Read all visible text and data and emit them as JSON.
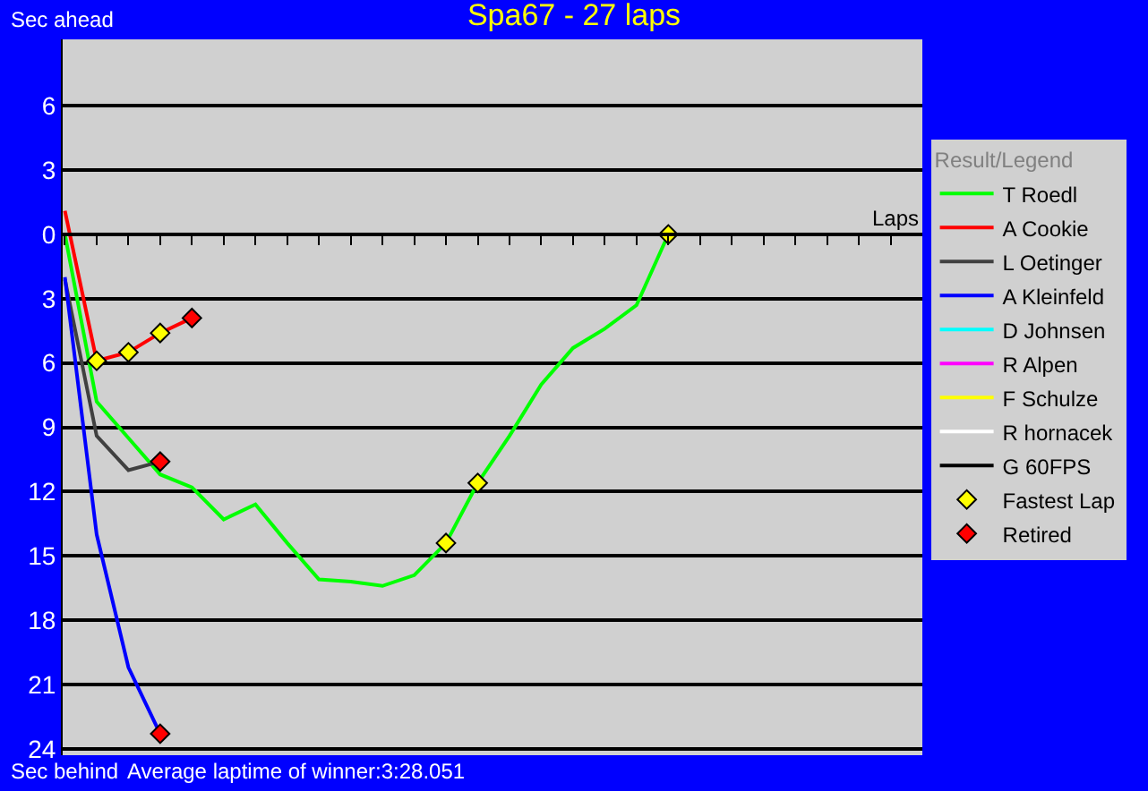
{
  "chart_data": {
    "type": "line",
    "title": "Spa67 - 27 laps",
    "xlabel": "Laps",
    "legend_title": "Result/Legend",
    "annotations": [
      "Sec ahead",
      "Sec behind",
      "Average laptime of winner:3:28.051"
    ],
    "categories": [
      null,
      null,
      null,
      null,
      null,
      null,
      null,
      null,
      null,
      null,
      null,
      null,
      null,
      null,
      null,
      null,
      null,
      null,
      null,
      null,
      null,
      null,
      null,
      null,
      null,
      null,
      null,
      null
    ],
    "series": [
      {
        "name": "T Roedl",
        "color": "#00ff00",
        "values": [
          0,
          -7.8,
          -9.5,
          -11.2,
          -11.8,
          -13.3,
          -12.6,
          -14.4,
          -16.1,
          -16.2,
          -16.4,
          -15.9,
          -14.4,
          -11.6,
          -9.4,
          -7.0,
          -5.3,
          -4.4,
          -3.3,
          0,
          null,
          null,
          null,
          null,
          null,
          null,
          null,
          null
        ]
      },
      {
        "name": "A Cookie",
        "color": "#ff0000",
        "values": [
          1.1,
          -5.9,
          -5.5,
          -4.6,
          -3.9,
          null,
          null,
          null,
          null,
          null,
          null,
          null,
          null,
          null,
          null,
          null,
          null,
          null,
          null,
          null,
          null,
          null,
          null,
          null,
          null,
          null,
          null,
          null
        ]
      },
      {
        "name": "L Oetinger",
        "color": "#404040",
        "values": [
          -2.1,
          -9.4,
          -11.0,
          -10.6,
          null,
          null,
          null,
          null,
          null,
          null,
          null,
          null,
          null,
          null,
          null,
          null,
          null,
          null,
          null,
          null,
          null,
          null,
          null,
          null,
          null,
          null,
          null,
          null
        ]
      },
      {
        "name": "A Kleinfeld",
        "color": "#0000ff",
        "values": [
          -2.0,
          -14.0,
          -20.2,
          -23.3,
          null,
          null,
          null,
          null,
          null,
          null,
          null,
          null,
          null,
          null,
          null,
          null,
          null,
          null,
          null,
          null,
          null,
          null,
          null,
          null,
          null,
          null,
          null,
          null
        ]
      },
      {
        "name": "D Johnsen",
        "color": "#00ffff",
        "values": [
          null,
          null,
          null,
          null,
          null,
          null,
          null,
          null,
          null,
          null,
          null,
          null,
          null,
          null,
          null,
          null,
          null,
          null,
          null,
          null,
          null,
          null,
          null,
          null,
          null,
          null,
          null,
          null
        ]
      },
      {
        "name": "R Alpen",
        "color": "#ff00ff",
        "values": [
          null,
          null,
          null,
          null,
          null,
          null,
          null,
          null,
          null,
          null,
          null,
          null,
          null,
          null,
          null,
          null,
          null,
          null,
          null,
          null,
          null,
          null,
          null,
          null,
          null,
          null,
          null,
          null
        ]
      },
      {
        "name": "F Schulze",
        "color": "#ffff00",
        "values": [
          null,
          null,
          null,
          null,
          null,
          null,
          null,
          null,
          null,
          null,
          null,
          null,
          null,
          null,
          null,
          null,
          null,
          null,
          null,
          null,
          null,
          null,
          null,
          null,
          null,
          null,
          null,
          null
        ]
      },
      {
        "name": "R hornacek",
        "color": "#ffffff",
        "values": [
          null,
          null,
          null,
          null,
          null,
          null,
          null,
          null,
          null,
          null,
          null,
          null,
          null,
          null,
          null,
          null,
          null,
          null,
          null,
          null,
          null,
          null,
          null,
          null,
          null,
          null,
          null,
          null
        ]
      },
      {
        "name": "G 60FPS",
        "color": "#000000",
        "values": [
          null,
          null,
          null,
          null,
          null,
          null,
          null,
          null,
          null,
          null,
          null,
          null,
          null,
          null,
          null,
          null,
          null,
          null,
          null,
          null,
          null,
          null,
          null,
          null,
          null,
          null,
          null,
          null
        ]
      },
      {
        "name": "Fastest Lap",
        "type": "scatter",
        "marker": "diamond",
        "color": "#ffff00",
        "values": [
          null,
          -5.9,
          -5.5,
          -4.6,
          null,
          null,
          null,
          null,
          null,
          null,
          null,
          null,
          -14.4,
          -11.6,
          null,
          null,
          null,
          null,
          null,
          0,
          null,
          null,
          null,
          null,
          null,
          null,
          null,
          null
        ]
      },
      {
        "name": "Retired",
        "type": "scatter",
        "marker": "diamond",
        "color": "#ff0000",
        "values": [
          null,
          null,
          null,
          -10.6,
          -3.9,
          null,
          null,
          null,
          null,
          null,
          null,
          null,
          null,
          null,
          null,
          null,
          null,
          null,
          null,
          null,
          null,
          null,
          null,
          null,
          null,
          null,
          null,
          null
        ]
      },
      {
        "type": "scatter",
        "marker": "diamond",
        "color": "#ff0000",
        "values": [
          null,
          null,
          null,
          -23.3,
          null,
          null,
          null,
          null,
          null,
          null,
          null,
          null,
          null,
          null,
          null,
          null,
          null,
          null,
          null,
          null,
          null,
          null,
          null,
          null,
          null,
          null,
          null,
          null
        ]
      }
    ],
    "ylim": [
      -24.3,
      9.1
    ],
    "yticks": [
      {
        "value": 6,
        "label": "6"
      },
      {
        "value": 3,
        "label": "3"
      },
      {
        "value": 0,
        "label": "0"
      },
      {
        "value": -3,
        "label": "3"
      },
      {
        "value": -6,
        "label": "6"
      },
      {
        "value": -9,
        "label": "9"
      },
      {
        "value": -12,
        "label": "12"
      },
      {
        "value": -15,
        "label": "15"
      },
      {
        "value": -18,
        "label": "18"
      },
      {
        "value": -21,
        "label": "21"
      },
      {
        "value": -24,
        "label": "24"
      }
    ],
    "grid": "y",
    "legend": "right",
    "marker": "none",
    "line_style": "solid",
    "tick_labels": "y"
  }
}
